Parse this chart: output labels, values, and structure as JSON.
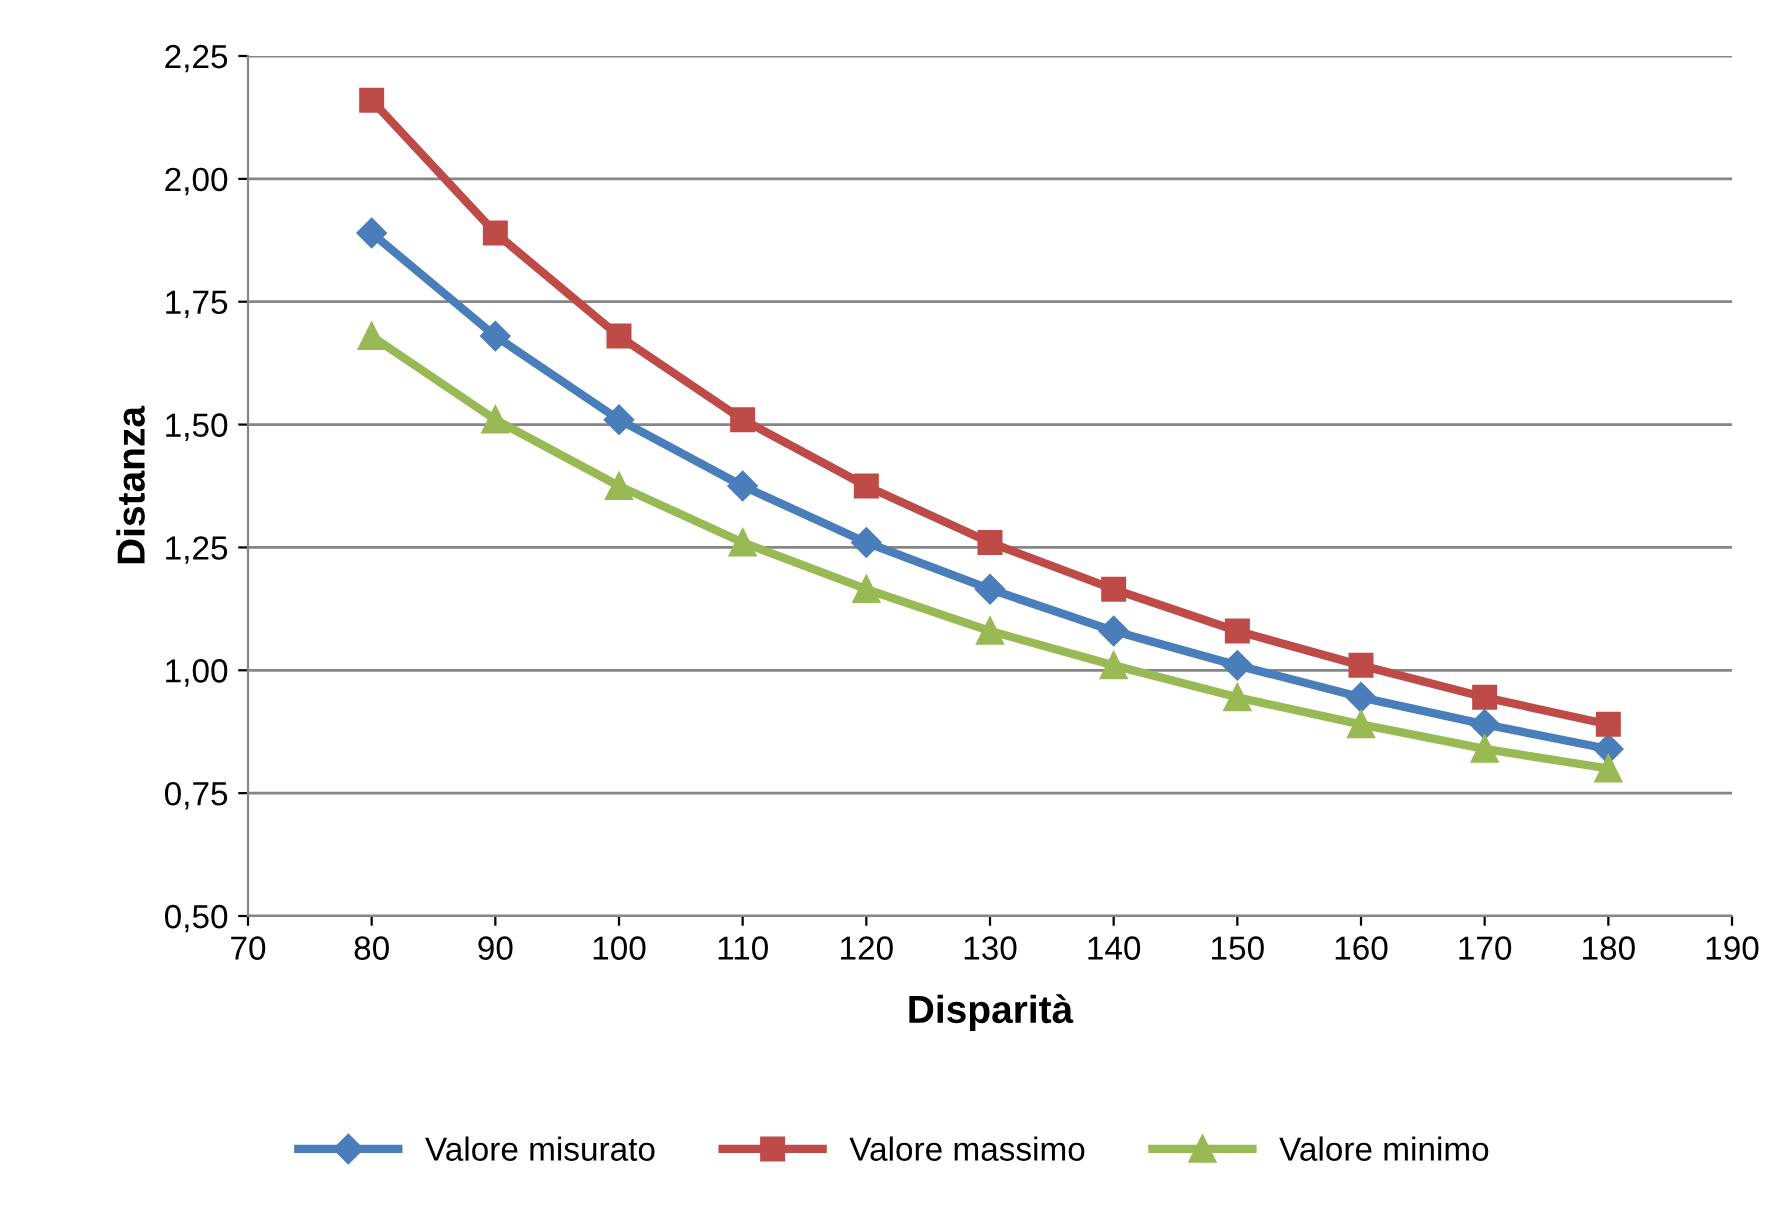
{
  "chart_data": {
    "type": "line",
    "xlabel": "Disparità",
    "ylabel": "Distanza",
    "x": [
      80,
      90,
      100,
      110,
      120,
      130,
      140,
      150,
      160,
      170,
      180
    ],
    "series": [
      {
        "name": "Valore misurato",
        "color": "#4a7ebb",
        "marker": "diamond",
        "values": [
          1.89,
          1.68,
          1.51,
          1.375,
          1.26,
          1.165,
          1.08,
          1.01,
          0.945,
          0.89,
          0.84
        ]
      },
      {
        "name": "Valore massimo",
        "color": "#be4b48",
        "marker": "square",
        "values": [
          2.16,
          1.89,
          1.68,
          1.51,
          1.375,
          1.26,
          1.165,
          1.08,
          1.01,
          0.945,
          0.89
        ]
      },
      {
        "name": "Valore minimo",
        "color": "#98b954",
        "marker": "triangle",
        "values": [
          1.68,
          1.51,
          1.375,
          1.26,
          1.165,
          1.08,
          1.01,
          0.945,
          0.89,
          0.84,
          0.8
        ]
      }
    ],
    "xlim": [
      70,
      190
    ],
    "xticks": [
      70,
      80,
      90,
      100,
      110,
      120,
      130,
      140,
      150,
      160,
      170,
      180,
      190
    ],
    "ylim": [
      0.5,
      2.25
    ],
    "yticks": [
      {
        "value": 0.5,
        "label": "0,50"
      },
      {
        "value": 0.75,
        "label": "0,75"
      },
      {
        "value": 1.0,
        "label": "1,00"
      },
      {
        "value": 1.25,
        "label": "1,25"
      },
      {
        "value": 1.5,
        "label": "1,50"
      },
      {
        "value": 1.75,
        "label": "1,75"
      },
      {
        "value": 2.0,
        "label": "2,00"
      },
      {
        "value": 2.25,
        "label": "2,25"
      }
    ],
    "grid": "y",
    "legend": "bottom",
    "line_style": "solid"
  }
}
